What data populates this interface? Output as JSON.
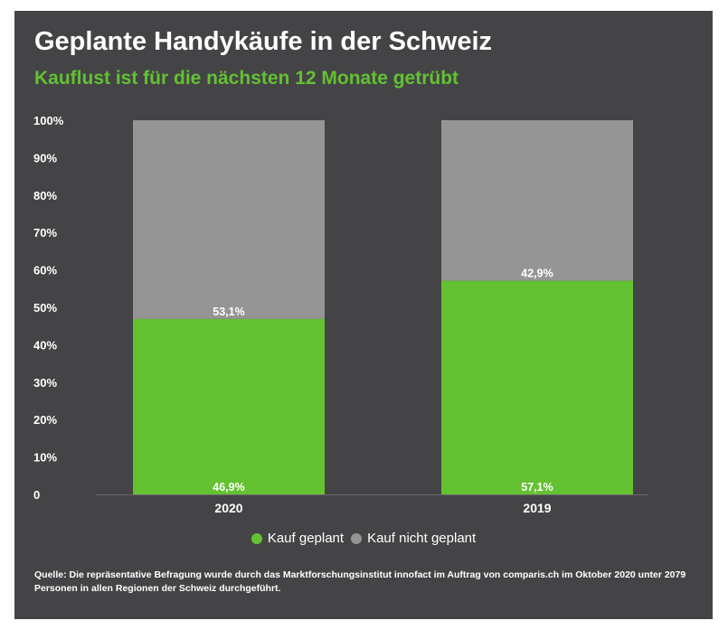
{
  "chart_data": {
    "type": "bar",
    "stacked": true,
    "title": "Geplante Handykäufe in der Schweiz",
    "subtitle": "Kauflust ist für die nächsten 12 Monate getrübt",
    "categories": [
      "2020",
      "2019"
    ],
    "series": [
      {
        "name": "Kauf geplant",
        "color": "#63c132",
        "values": [
          46.9,
          57.1
        ],
        "labels": [
          "46,9%",
          "57,1%"
        ]
      },
      {
        "name": "Kauf nicht geplant",
        "color": "#959595",
        "values": [
          53.1,
          42.9
        ],
        "labels": [
          "53,1%",
          "42,9%"
        ]
      }
    ],
    "ylim": [
      0,
      100
    ],
    "yticks": [
      {
        "value": 0,
        "label": "0"
      },
      {
        "value": 10,
        "label": "10%"
      },
      {
        "value": 20,
        "label": "20%"
      },
      {
        "value": 30,
        "label": "30%"
      },
      {
        "value": 40,
        "label": "40%"
      },
      {
        "value": 50,
        "label": "50%"
      },
      {
        "value": 60,
        "label": "60%"
      },
      {
        "value": 70,
        "label": "70%"
      },
      {
        "value": 80,
        "label": "80%"
      },
      {
        "value": 90,
        "label": "90%"
      },
      {
        "value": 100,
        "label": "100%"
      }
    ],
    "grid": false,
    "legend_position": "bottom-center"
  },
  "source_note": "Quelle: Die repräsentative Befragung wurde durch das Marktforschungsinstitut innofact im Auftrag von comparis.ch im Oktober 2020 unter 2079 Personen in allen Regionen der Schweiz durchgeführt.",
  "colors": {
    "background": "#444447",
    "text": "#ffffff",
    "accent": "#63c132"
  }
}
